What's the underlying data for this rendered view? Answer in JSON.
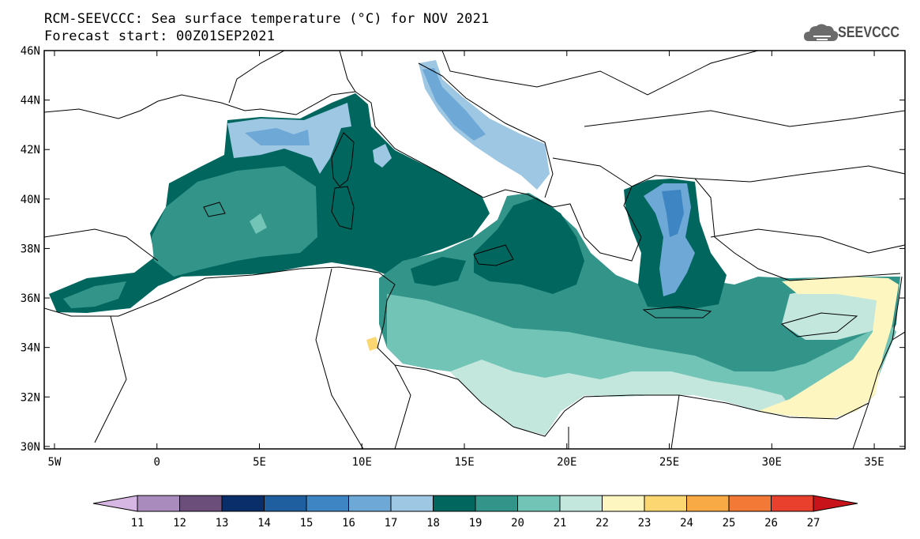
{
  "title": {
    "line1": "RCM-SEEVCCC: Sea surface temperature (°C) for NOV 2021",
    "line2": "Forecast start: 00Z01SEP2021"
  },
  "logo": {
    "text": "SEEVCCC",
    "icon": "cloud-icon"
  },
  "map": {
    "lon_range": [
      -5.5,
      36.5
    ],
    "lat_range": [
      29.9,
      46.0
    ],
    "lat_ticks": [
      {
        "value": 46,
        "label": "46N"
      },
      {
        "value": 44,
        "label": "44N"
      },
      {
        "value": 42,
        "label": "42N"
      },
      {
        "value": 40,
        "label": "40N"
      },
      {
        "value": 38,
        "label": "38N"
      },
      {
        "value": 36,
        "label": "36N"
      },
      {
        "value": 34,
        "label": "34N"
      },
      {
        "value": 32,
        "label": "32N"
      },
      {
        "value": 30,
        "label": "30N"
      }
    ],
    "lon_ticks": [
      {
        "value": -5,
        "label": "5W"
      },
      {
        "value": 0,
        "label": "0"
      },
      {
        "value": 5,
        "label": "5E"
      },
      {
        "value": 10,
        "label": "10E"
      },
      {
        "value": 15,
        "label": "15E"
      },
      {
        "value": 20,
        "label": "20E"
      },
      {
        "value": 25,
        "label": "25E"
      },
      {
        "value": 30,
        "label": "30E"
      },
      {
        "value": 35,
        "label": "35E"
      }
    ]
  },
  "colorbar": {
    "labels": [
      "11",
      "12",
      "13",
      "14",
      "15",
      "16",
      "17",
      "18",
      "19",
      "20",
      "21",
      "22",
      "23",
      "24",
      "25",
      "26",
      "27"
    ],
    "colors": [
      "#d6b6e3",
      "#a98bbd",
      "#6b4f7a",
      "#0a2e6a",
      "#1f5fa0",
      "#3e86c3",
      "#6ea8d6",
      "#9ec7e4",
      "#00665e",
      "#33948a",
      "#72c4b6",
      "#c3e6dd",
      "#fdf6c0",
      "#fcd670",
      "#f8aa44",
      "#f27a36",
      "#e8402c",
      "#c9131a"
    ]
  }
}
